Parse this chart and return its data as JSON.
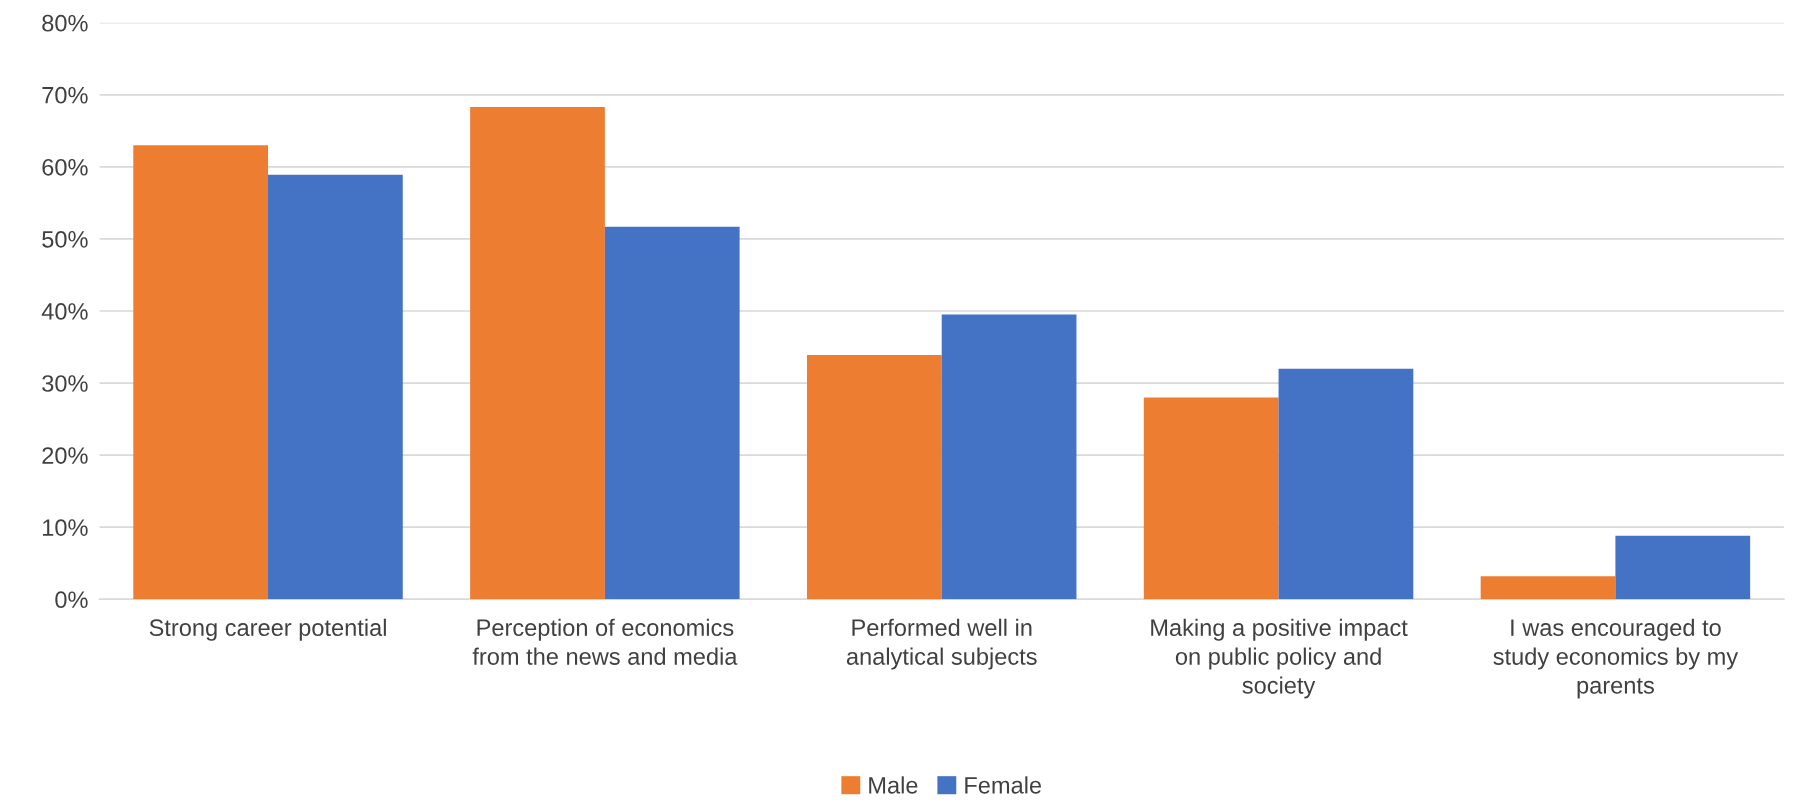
{
  "chart_data": {
    "type": "bar",
    "categories": [
      "Strong career potential",
      "Perception of economics\nfrom the news and media",
      "Performed well in\nanalytical subjects",
      "Making a positive impact\non public policy and\nsociety",
      "I was encouraged to\nstudy economics by my\nparents"
    ],
    "series": [
      {
        "name": "Male",
        "color": "#ed7d31",
        "values": [
          63.0,
          68.3,
          33.9,
          28.0,
          3.2
        ]
      },
      {
        "name": "Female",
        "color": "#4472c4",
        "values": [
          58.9,
          51.7,
          39.5,
          32.0,
          8.8
        ]
      }
    ],
    "ylim": [
      0,
      80
    ],
    "yticks": [
      {
        "value": 0,
        "label": "0%"
      },
      {
        "value": 10,
        "label": "10%"
      },
      {
        "value": 20,
        "label": "20%"
      },
      {
        "value": 30,
        "label": "30%"
      },
      {
        "value": 40,
        "label": "40%"
      },
      {
        "value": 50,
        "label": "50%"
      },
      {
        "value": 60,
        "label": "60%"
      },
      {
        "value": 70,
        "label": "70%"
      },
      {
        "value": 80,
        "label": "80%"
      }
    ],
    "grid": "y",
    "legend": "bottom"
  }
}
